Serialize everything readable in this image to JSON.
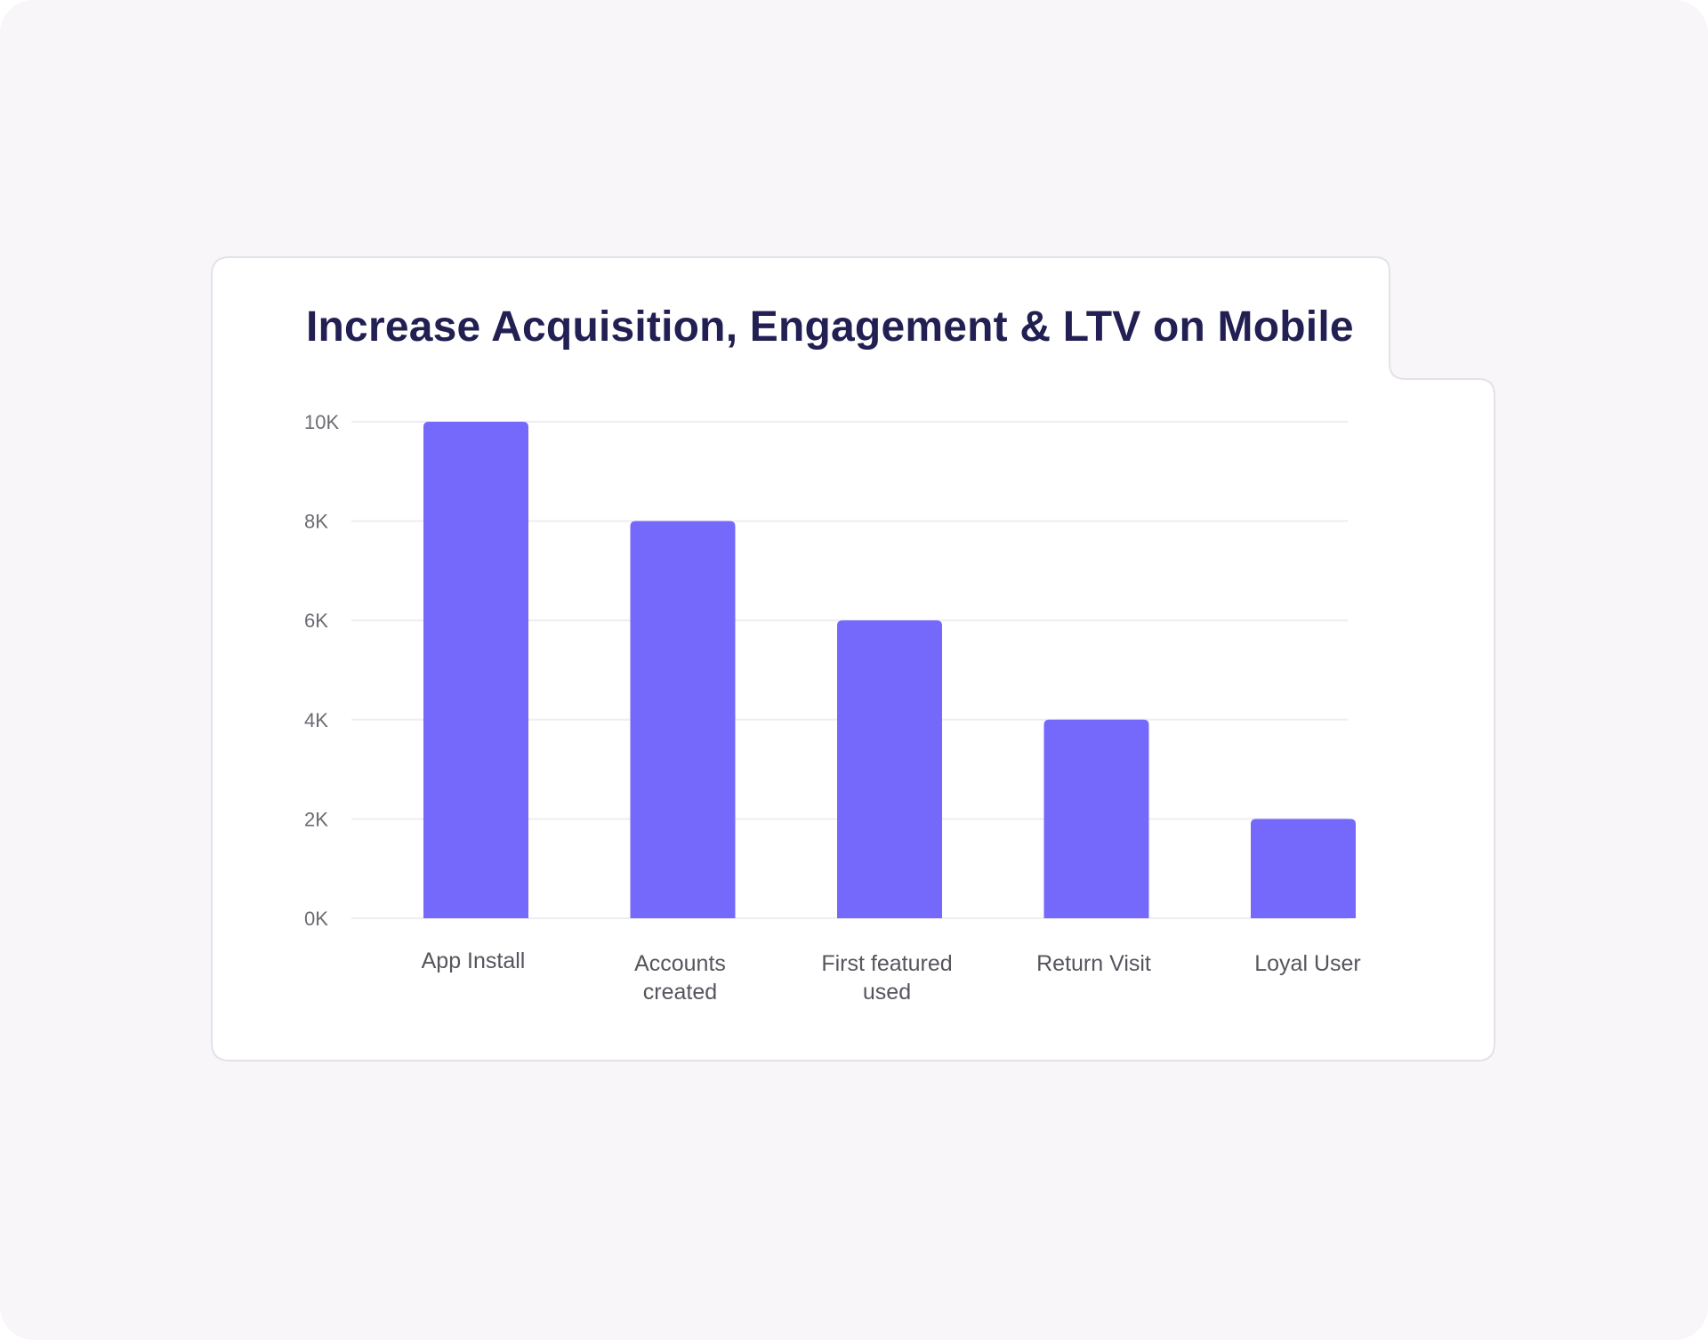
{
  "chart_data": {
    "type": "bar",
    "title": "Increase Acquisition, Engagement & LTV on Mobile",
    "categories": [
      "App Install",
      "Accounts created",
      "First featured used",
      "Return Visit",
      "Loyal User"
    ],
    "category_lines": [
      [
        "App Install"
      ],
      [
        "Accounts",
        "created"
      ],
      [
        "First featured",
        "used"
      ],
      [
        "Return Visit"
      ],
      [
        "Loyal User"
      ]
    ],
    "values": [
      10000,
      8000,
      6000,
      4000,
      2000
    ],
    "yticks": [
      0,
      2000,
      4000,
      6000,
      8000,
      10000
    ],
    "ytick_labels": [
      "0K",
      "2K",
      "4K",
      "6K",
      "8K",
      "10K"
    ],
    "ylim": [
      0,
      10000
    ],
    "grid": true,
    "bar_color": "#7569fb",
    "grid_color": "#eeedf2"
  }
}
